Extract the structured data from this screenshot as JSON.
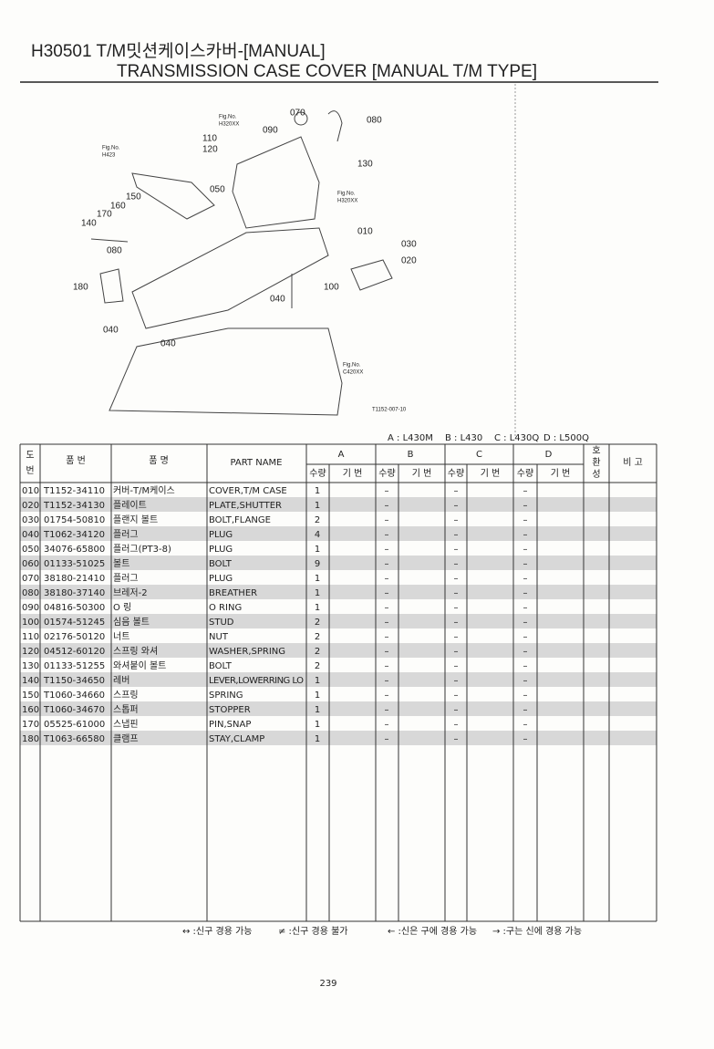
{
  "header": {
    "title_line1": "H30501 T/M밋션케이스카버-[MANUAL]",
    "title_line2": "TRANSMISSION CASE COVER [MANUAL T/M TYPE]"
  },
  "diagram": {
    "labels": [
      "Fig.No.",
      "H320XX",
      "070",
      "080",
      "090",
      "110",
      "120",
      "130",
      "Fig.No.",
      "H423",
      "150",
      "160",
      "170",
      "140",
      "050",
      "Fig.No.",
      "H320XX",
      "010",
      "030",
      "080",
      "020",
      "180",
      "100",
      "040",
      "040",
      "040",
      "Fig.No.",
      "C420XX",
      "T1152-007-10"
    ]
  },
  "models": [
    "A : L430M",
    "B : L430",
    "C : L430Q",
    "D : L500Q"
  ],
  "table": {
    "header": {
      "no": [
        "도",
        "번"
      ],
      "part_no": "품 번",
      "name_kr": "품 명",
      "name_en": "PART NAME",
      "groups": [
        "A",
        "B",
        "C",
        "D"
      ],
      "qty": "수량",
      "serial": "기 번",
      "compat": [
        "호",
        "환",
        "성"
      ],
      "remarks": "비 고"
    },
    "rows": [
      [
        "010",
        "T1152-34110",
        "커버-T/M케이스",
        "COVER,T/M CASE",
        "1",
        "–",
        "–",
        "–"
      ],
      [
        "020",
        "T1152-34130",
        "플레이트",
        "PLATE,SHUTTER",
        "1",
        "–",
        "–",
        "–"
      ],
      [
        "030",
        "01754-50810",
        "플랜지 볼트",
        "BOLT,FLANGE",
        "2",
        "–",
        "–",
        "–"
      ],
      [
        "040",
        "T1062-34120",
        "플러그",
        "PLUG",
        "4",
        "–",
        "–",
        "–"
      ],
      [
        "050",
        "34076-65800",
        "플러그(PT3-8)",
        "PLUG",
        "1",
        "–",
        "–",
        "–"
      ],
      [
        "060",
        "01133-51025",
        "볼트",
        "BOLT",
        "9",
        "–",
        "–",
        "–"
      ],
      [
        "070",
        "38180-21410",
        "플러그",
        "PLUG",
        "1",
        "–",
        "–",
        "–"
      ],
      [
        "080",
        "38180-37140",
        "브레저-2",
        "BREATHER",
        "1",
        "–",
        "–",
        "–"
      ],
      [
        "090",
        "04816-50300",
        "O 링",
        "O RING",
        "1",
        "–",
        "–",
        "–"
      ],
      [
        "100",
        "01574-51245",
        "심음 볼트",
        "STUD",
        "2",
        "–",
        "–",
        "–"
      ],
      [
        "110",
        "02176-50120",
        "너트",
        "NUT",
        "2",
        "–",
        "–",
        "–"
      ],
      [
        "120",
        "04512-60120",
        "스프링 와셔",
        "WASHER,SPRING",
        "2",
        "–",
        "–",
        "–"
      ],
      [
        "130",
        "01133-51255",
        "와셔붙이 볼트",
        "BOLT",
        "2",
        "–",
        "–",
        "–"
      ],
      [
        "140",
        "T1150-34650",
        "레버",
        "LEVER,LOWERRING LO",
        "1",
        "–",
        "–",
        "–"
      ],
      [
        "150",
        "T1060-34660",
        "스프링",
        "SPRING",
        "1",
        "–",
        "–",
        "–"
      ],
      [
        "160",
        "T1060-34670",
        "스톱퍼",
        "STOPPER",
        "1",
        "–",
        "–",
        "–"
      ],
      [
        "170",
        "05525-61000",
        "스냅핀",
        "PIN,SNAP",
        "1",
        "–",
        "–",
        "–"
      ],
      [
        "180",
        "T1063-66580",
        "클램프",
        "STAY,CLAMP",
        "1",
        "–",
        "–",
        "–"
      ]
    ]
  },
  "footer": {
    "legend": [
      "↔ :신구 경용 가능",
      "≠ :신구 경용 불가",
      "← :신은 구에 경용 가능",
      "→ :구는 신에 경용 가능"
    ],
    "page_number": "239"
  }
}
